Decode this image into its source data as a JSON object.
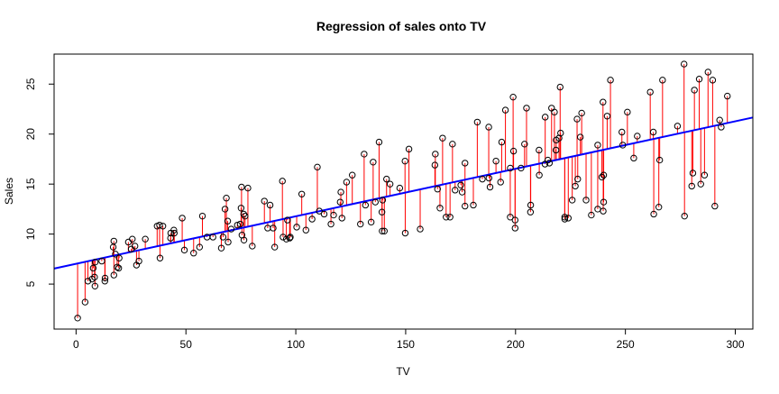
{
  "chart_data": {
    "type": "scatter",
    "title": "Regression of sales onto TV",
    "xlabel": "TV",
    "ylabel": "Sales",
    "xlim": [
      -10,
      308
    ],
    "ylim": [
      0.5,
      28
    ],
    "xticks": [
      "0",
      "50",
      "100",
      "150",
      "200",
      "250",
      "300"
    ],
    "yticks": [
      "5",
      "10",
      "15",
      "20",
      "25"
    ],
    "regression": {
      "intercept": 7.03,
      "slope": 0.0475,
      "color": "#0000ff"
    },
    "residual_color": "#ff0000",
    "point_color": "#000000",
    "points": [
      [
        0.7,
        1.6
      ],
      [
        4.1,
        3.2
      ],
      [
        5.4,
        5.3
      ],
      [
        7.3,
        5.5
      ],
      [
        7.8,
        6.6
      ],
      [
        8.4,
        5.7
      ],
      [
        8.6,
        4.8
      ],
      [
        8.7,
        7.2
      ],
      [
        11.7,
        7.3
      ],
      [
        13.1,
        5.3
      ],
      [
        13.2,
        5.6
      ],
      [
        16.9,
        8.7
      ],
      [
        17.2,
        9.3
      ],
      [
        17.2,
        5.9
      ],
      [
        17.9,
        8.0
      ],
      [
        18.7,
        6.7
      ],
      [
        19.4,
        6.6
      ],
      [
        19.6,
        7.6
      ],
      [
        23.8,
        9.2
      ],
      [
        25.1,
        8.5
      ],
      [
        25.6,
        9.5
      ],
      [
        26.8,
        8.8
      ],
      [
        27.5,
        6.9
      ],
      [
        28.6,
        7.3
      ],
      [
        31.5,
        9.5
      ],
      [
        36.9,
        10.8
      ],
      [
        38.0,
        10.9
      ],
      [
        38.2,
        7.6
      ],
      [
        39.5,
        10.8
      ],
      [
        43.0,
        9.6
      ],
      [
        43.1,
        10.1
      ],
      [
        44.5,
        10.4
      ],
      [
        44.7,
        10.1
      ],
      [
        48.3,
        11.6
      ],
      [
        49.3,
        8.4
      ],
      [
        53.5,
        8.1
      ],
      [
        56.2,
        8.7
      ],
      [
        57.5,
        11.8
      ],
      [
        59.6,
        9.7
      ],
      [
        62.3,
        9.7
      ],
      [
        66.1,
        8.6
      ],
      [
        66.9,
        9.7
      ],
      [
        67.8,
        12.5
      ],
      [
        68.4,
        13.6
      ],
      [
        69.0,
        11.3
      ],
      [
        69.2,
        9.2
      ],
      [
        70.6,
        10.5
      ],
      [
        73.4,
        10.9
      ],
      [
        74.7,
        11.0
      ],
      [
        75.1,
        12.6
      ],
      [
        75.3,
        14.7
      ],
      [
        75.5,
        9.9
      ],
      [
        76.3,
        12.0
      ],
      [
        76.4,
        9.4
      ],
      [
        76.9,
        11.8
      ],
      [
        78.2,
        14.6
      ],
      [
        80.2,
        8.8
      ],
      [
        85.7,
        13.3
      ],
      [
        87.2,
        10.6
      ],
      [
        88.3,
        12.9
      ],
      [
        89.7,
        10.6
      ],
      [
        90.4,
        8.7
      ],
      [
        93.9,
        15.3
      ],
      [
        94.2,
        9.7
      ],
      [
        95.7,
        9.5
      ],
      [
        96.2,
        11.4
      ],
      [
        97.2,
        9.6
      ],
      [
        97.5,
        9.7
      ],
      [
        100.4,
        10.7
      ],
      [
        102.7,
        14.0
      ],
      [
        104.6,
        10.4
      ],
      [
        107.4,
        11.5
      ],
      [
        109.8,
        16.7
      ],
      [
        110.7,
        12.3
      ],
      [
        112.9,
        12.0
      ],
      [
        116.0,
        11.0
      ],
      [
        117.2,
        11.9
      ],
      [
        120.2,
        13.2
      ],
      [
        120.5,
        14.2
      ],
      [
        121.0,
        11.6
      ],
      [
        123.1,
        15.2
      ],
      [
        125.7,
        15.9
      ],
      [
        129.4,
        11.0
      ],
      [
        131.1,
        18.0
      ],
      [
        131.7,
        12.9
      ],
      [
        134.3,
        11.2
      ],
      [
        135.2,
        17.2
      ],
      [
        136.2,
        13.2
      ],
      [
        137.9,
        19.2
      ],
      [
        139.2,
        12.2
      ],
      [
        139.3,
        10.3
      ],
      [
        139.5,
        13.4
      ],
      [
        140.3,
        10.3
      ],
      [
        141.3,
        15.5
      ],
      [
        142.9,
        15.0
      ],
      [
        147.3,
        14.6
      ],
      [
        149.7,
        17.3
      ],
      [
        149.8,
        10.1
      ],
      [
        151.5,
        18.5
      ],
      [
        156.6,
        10.5
      ],
      [
        163.3,
        16.9
      ],
      [
        163.5,
        18.0
      ],
      [
        164.5,
        14.5
      ],
      [
        165.6,
        12.6
      ],
      [
        166.8,
        19.6
      ],
      [
        168.4,
        11.7
      ],
      [
        170.2,
        11.7
      ],
      [
        171.3,
        19.0
      ],
      [
        172.5,
        14.4
      ],
      [
        175.1,
        14.9
      ],
      [
        175.7,
        14.2
      ],
      [
        177.0,
        12.8
      ],
      [
        177.0,
        17.1
      ],
      [
        180.8,
        12.9
      ],
      [
        182.6,
        21.2
      ],
      [
        184.9,
        15.5
      ],
      [
        187.8,
        20.7
      ],
      [
        187.9,
        15.6
      ],
      [
        188.4,
        14.7
      ],
      [
        191.1,
        17.3
      ],
      [
        193.2,
        15.2
      ],
      [
        193.7,
        19.2
      ],
      [
        195.4,
        22.4
      ],
      [
        197.6,
        11.7
      ],
      [
        197.6,
        16.6
      ],
      [
        198.9,
        23.7
      ],
      [
        199.1,
        18.3
      ],
      [
        199.8,
        10.6
      ],
      [
        199.8,
        11.4
      ],
      [
        202.5,
        16.6
      ],
      [
        204.1,
        19.0
      ],
      [
        205.0,
        22.6
      ],
      [
        206.8,
        12.2
      ],
      [
        206.9,
        12.9
      ],
      [
        210.7,
        18.4
      ],
      [
        210.8,
        15.9
      ],
      [
        213.4,
        17.0
      ],
      [
        213.5,
        21.7
      ],
      [
        214.7,
        17.4
      ],
      [
        215.4,
        17.1
      ],
      [
        216.4,
        22.6
      ],
      [
        217.7,
        22.2
      ],
      [
        218.4,
        18.4
      ],
      [
        218.5,
        19.4
      ],
      [
        219.8,
        19.6
      ],
      [
        220.3,
        24.7
      ],
      [
        220.5,
        20.1
      ],
      [
        222.4,
        11.7
      ],
      [
        222.4,
        11.5
      ],
      [
        224.0,
        11.6
      ],
      [
        225.8,
        13.4
      ],
      [
        227.2,
        14.8
      ],
      [
        228.0,
        21.5
      ],
      [
        228.3,
        15.5
      ],
      [
        229.5,
        19.7
      ],
      [
        230.1,
        22.1
      ],
      [
        232.1,
        13.4
      ],
      [
        234.5,
        11.9
      ],
      [
        237.4,
        12.5
      ],
      [
        237.4,
        18.9
      ],
      [
        239.3,
        15.7
      ],
      [
        239.8,
        23.2
      ],
      [
        239.9,
        12.3
      ],
      [
        240.1,
        13.2
      ],
      [
        240.1,
        15.9
      ],
      [
        241.7,
        21.8
      ],
      [
        243.2,
        25.4
      ],
      [
        248.4,
        20.2
      ],
      [
        248.8,
        18.9
      ],
      [
        250.9,
        22.2
      ],
      [
        253.8,
        17.6
      ],
      [
        255.4,
        19.8
      ],
      [
        261.3,
        24.2
      ],
      [
        262.7,
        20.2
      ],
      [
        262.9,
        12.0
      ],
      [
        265.2,
        12.7
      ],
      [
        265.6,
        17.4
      ],
      [
        266.9,
        25.4
      ],
      [
        273.7,
        20.8
      ],
      [
        276.7,
        27.0
      ],
      [
        276.9,
        11.8
      ],
      [
        280.2,
        14.8
      ],
      [
        280.7,
        16.1
      ],
      [
        281.4,
        24.4
      ],
      [
        283.6,
        25.5
      ],
      [
        284.3,
        15.0
      ],
      [
        286.0,
        15.9
      ],
      [
        287.6,
        26.2
      ],
      [
        289.7,
        25.4
      ],
      [
        290.7,
        12.8
      ],
      [
        292.9,
        21.4
      ],
      [
        293.6,
        20.7
      ],
      [
        296.4,
        23.8
      ]
    ]
  }
}
